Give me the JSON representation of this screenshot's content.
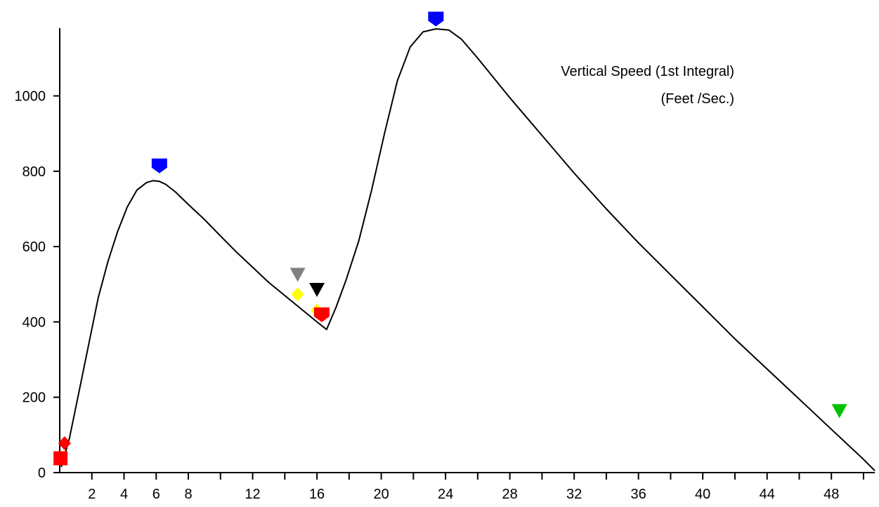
{
  "chart_data": {
    "type": "line",
    "title": "",
    "xlabel": "",
    "ylabel": "",
    "xlim": [
      0,
      50.7
    ],
    "ylim": [
      0,
      1180
    ],
    "x_ticks_labeled": [
      2,
      4,
      6,
      8,
      12,
      16,
      20,
      24,
      28,
      32,
      36,
      40,
      44,
      48
    ],
    "x_ticks_minor": [
      10,
      14,
      18,
      22,
      26,
      30,
      34,
      38,
      42,
      46,
      50
    ],
    "y_ticks": [
      0,
      200,
      400,
      600,
      800,
      1000
    ],
    "grid": false,
    "annotation": {
      "line1": "Vertical Speed (1st Integral)",
      "line2": "(Feet /Sec.)"
    },
    "series": [
      {
        "color": "#000000",
        "x": [
          0.1,
          0.6,
          1.2,
          1.8,
          2.4,
          3.0,
          3.6,
          4.2,
          4.8,
          5.4,
          5.8,
          6.2,
          6.6,
          7.2,
          8.0,
          9.0,
          10.0,
          11.0,
          12.0,
          13.0,
          14.0,
          15.0,
          16.0,
          16.6,
          16.8,
          17.2,
          17.8,
          18.6,
          19.4,
          20.2,
          21.0,
          21.8,
          22.6,
          23.4,
          24.2,
          25.0,
          26.0,
          28.0,
          30.0,
          32.0,
          34.0,
          36.0,
          38.0,
          40.0,
          42.0,
          44.0,
          46.0,
          48.0,
          50.0,
          50.7
        ],
        "y": [
          15,
          90,
          215,
          340,
          465,
          560,
          640,
          705,
          750,
          770,
          775,
          773,
          765,
          745,
          712,
          672,
          628,
          585,
          545,
          505,
          470,
          435,
          400,
          380,
          400,
          440,
          510,
          615,
          750,
          900,
          1040,
          1130,
          1170,
          1178,
          1175,
          1150,
          1100,
          995,
          895,
          795,
          700,
          610,
          525,
          440,
          355,
          275,
          195,
          115,
          35,
          5
        ]
      }
    ],
    "markers": [
      {
        "shape": "square",
        "color": "#ff0000",
        "x": 0.05,
        "y": 38
      },
      {
        "shape": "diamond",
        "color": "#ff0000",
        "x": 0.3,
        "y": 78
      },
      {
        "shape": "shield-down",
        "color": "#0000ff",
        "x": 6.2,
        "y": 815
      },
      {
        "shape": "triangle-down",
        "color": "#808080",
        "x": 14.8,
        "y": 525
      },
      {
        "shape": "diamond",
        "color": "#ffff00",
        "x": 14.8,
        "y": 473
      },
      {
        "shape": "triangle-down",
        "color": "#000000",
        "x": 16.0,
        "y": 485
      },
      {
        "shape": "diamond",
        "color": "#ffff00",
        "x": 16.0,
        "y": 430
      },
      {
        "shape": "shield-down",
        "color": "#ff0000",
        "x": 16.3,
        "y": 420
      },
      {
        "shape": "shield-down",
        "color": "#0000ff",
        "x": 23.4,
        "y": 1205
      },
      {
        "shape": "triangle-down",
        "color": "#00c000",
        "x": 48.5,
        "y": 163
      }
    ]
  }
}
